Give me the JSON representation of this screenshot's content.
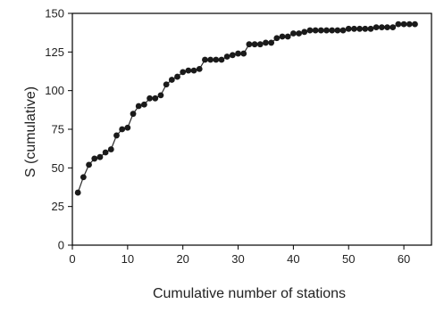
{
  "chart_data": {
    "type": "line",
    "title": "",
    "xlabel": "Cumulative number of stations",
    "ylabel": "S (cumulative)",
    "xlim": [
      0,
      65
    ],
    "ylim": [
      0,
      150
    ],
    "x_ticks": [
      0,
      10,
      20,
      30,
      40,
      50,
      60
    ],
    "y_ticks": [
      0,
      25,
      50,
      75,
      100,
      125,
      150
    ],
    "grid": false,
    "legend": "none",
    "markers": true,
    "colors": {
      "line": "#2b2b2b",
      "marker": "#1a1a1a",
      "axis": "#000000"
    },
    "series": [
      {
        "x": [
          1,
          2,
          3,
          4,
          5,
          6,
          7,
          8,
          9,
          10,
          11,
          12,
          13,
          14,
          15,
          16,
          17,
          18,
          19,
          20,
          21,
          22,
          23,
          24,
          25,
          26,
          27,
          28,
          29,
          30,
          31,
          32,
          33,
          34,
          35,
          36,
          37,
          38,
          39,
          40,
          41,
          42,
          43,
          44,
          45,
          46,
          47,
          48,
          49,
          50,
          51,
          52,
          53,
          54,
          55,
          56,
          57,
          58,
          59,
          60,
          61,
          62
        ],
        "values": [
          34,
          44,
          52,
          56,
          57,
          60,
          62,
          71,
          75,
          76,
          85,
          90,
          91,
          95,
          95,
          97,
          104,
          107,
          109,
          112,
          113,
          113,
          114,
          120,
          120,
          120,
          120,
          122,
          123,
          124,
          124,
          130,
          130,
          130,
          131,
          131,
          134,
          135,
          135,
          137,
          137,
          138,
          139,
          139,
          139,
          139,
          139,
          139,
          139,
          140,
          140,
          140,
          140,
          140,
          141,
          141,
          141,
          141,
          143,
          143,
          143,
          143
        ]
      }
    ]
  }
}
